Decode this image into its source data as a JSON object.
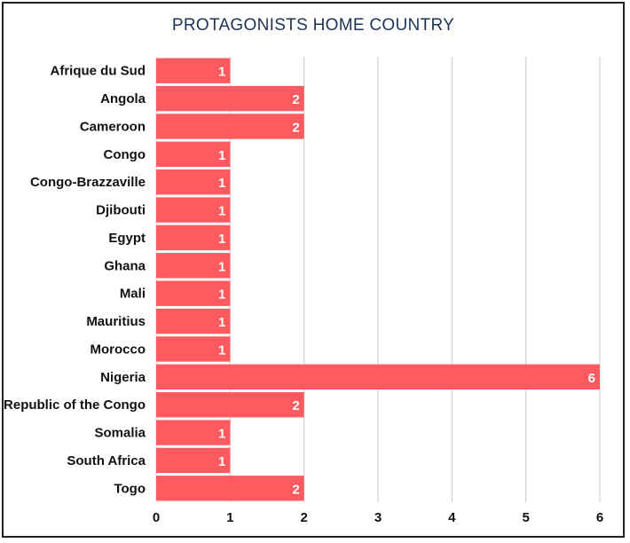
{
  "chart_data": {
    "type": "bar",
    "orientation": "horizontal",
    "title": "PROTAGONISTS HOME COUNTRY",
    "categories": [
      "Afrique du Sud",
      "Angola",
      "Cameroon",
      "Congo",
      "Congo-Brazzaville",
      "Djibouti",
      "Egypt",
      "Ghana",
      "Mali",
      "Mauritius",
      "Morocco",
      "Nigeria",
      "Republic of the Congo",
      "Somalia",
      "South Africa",
      "Togo"
    ],
    "values": [
      1,
      2,
      2,
      1,
      1,
      1,
      1,
      1,
      1,
      1,
      1,
      6,
      2,
      1,
      1,
      2
    ],
    "xticks": [
      0,
      1,
      2,
      3,
      4,
      5,
      6
    ],
    "xlim": [
      0,
      6
    ],
    "grid": true,
    "data_labels": true,
    "bar_color": "#ff5a5f",
    "title_color": "#1f3355"
  }
}
